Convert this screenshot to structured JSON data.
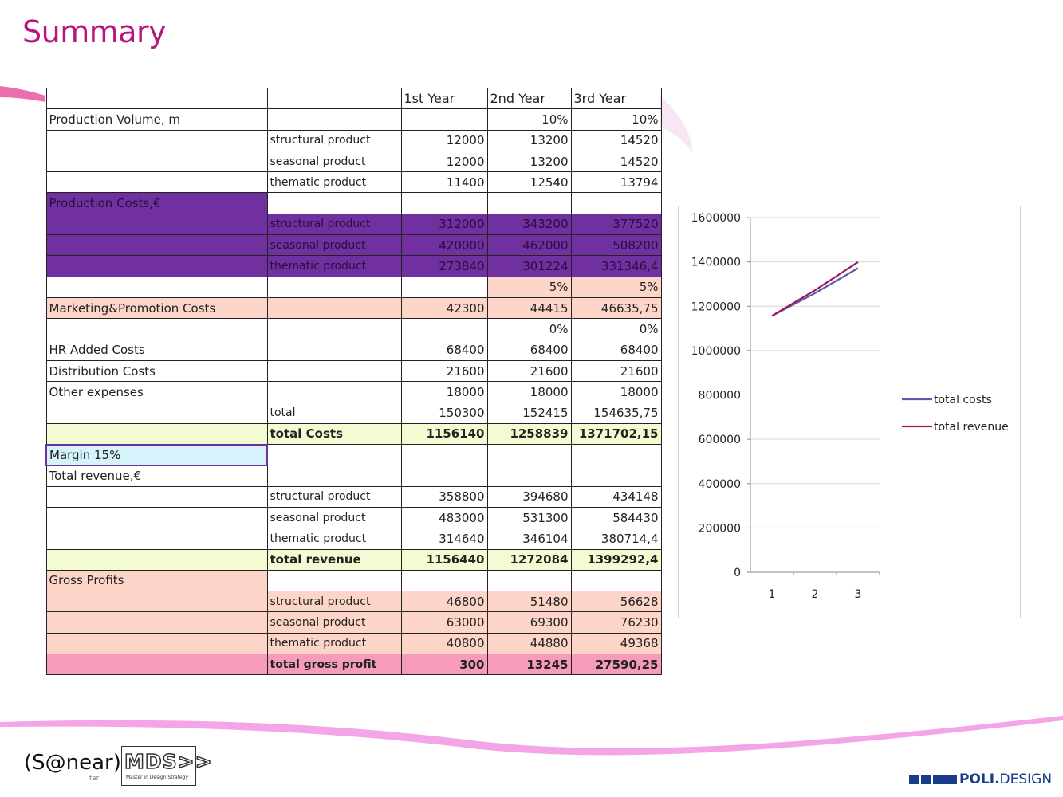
{
  "page": {
    "title": "Summary"
  },
  "table": {
    "headers": [
      "",
      "",
      "1st Year",
      "2nd Year",
      "3rd Year"
    ],
    "rows": [
      {
        "style": "",
        "cells": [
          "Production Volume, m",
          "",
          "",
          "10%",
          "10%"
        ]
      },
      {
        "style": "",
        "cells": [
          "",
          "structural product",
          "12000",
          "13200",
          "14520"
        ]
      },
      {
        "style": "",
        "cells": [
          "",
          "seasonal product",
          "12000",
          "13200",
          "14520"
        ]
      },
      {
        "style": "",
        "cells": [
          "",
          "thematic product",
          "11400",
          "12540",
          "13794"
        ]
      },
      {
        "style": "purplehead",
        "cells": [
          "Production Costs,€",
          "",
          "",
          "",
          ""
        ]
      },
      {
        "style": "purple",
        "cells": [
          "",
          "structural product",
          "312000",
          "343200",
          "377520"
        ]
      },
      {
        "style": "purple",
        "cells": [
          "",
          "seasonal product",
          "420000",
          "462000",
          "508200"
        ]
      },
      {
        "style": "purple",
        "cells": [
          "",
          "thematic product",
          "273840",
          "301224",
          "331346,4"
        ]
      },
      {
        "style": "peachpct",
        "cells": [
          "",
          "",
          "",
          "5%",
          "5%"
        ]
      },
      {
        "style": "pink",
        "cells": [
          "Marketing&Promotion Costs",
          "",
          "42300",
          "44415",
          "46635,75"
        ]
      },
      {
        "style": "",
        "cells": [
          "",
          "",
          "",
          "0%",
          "0%"
        ]
      },
      {
        "style": "",
        "cells": [
          "HR Added Costs",
          "",
          "68400",
          "68400",
          "68400"
        ]
      },
      {
        "style": "",
        "cells": [
          "Distribution Costs",
          "",
          "21600",
          "21600",
          "21600"
        ]
      },
      {
        "style": "",
        "cells": [
          "Other expenses",
          "",
          "18000",
          "18000",
          "18000"
        ]
      },
      {
        "style": "",
        "cells": [
          "",
          "total",
          "150300",
          "152415",
          "154635,75"
        ]
      },
      {
        "style": "limebold",
        "cells": [
          "",
          "total Costs",
          "1156140",
          "1258839",
          "1371702,15"
        ]
      },
      {
        "style": "cyan",
        "cells": [
          "Margin 15%",
          "",
          "",
          "",
          ""
        ]
      },
      {
        "style": "",
        "cells": [
          "Total revenue,€",
          "",
          "",
          "",
          ""
        ]
      },
      {
        "style": "",
        "cells": [
          "",
          "structural product",
          "358800",
          "394680",
          "434148"
        ]
      },
      {
        "style": "",
        "cells": [
          "",
          "seasonal product",
          "483000",
          "531300",
          "584430"
        ]
      },
      {
        "style": "",
        "cells": [
          "",
          "thematic product",
          "314640",
          "346104",
          "380714,4"
        ]
      },
      {
        "style": "limebold",
        "cells": [
          "",
          "total revenue",
          "1156440",
          "1272084",
          "1399292,4"
        ]
      },
      {
        "style": "pinkhead",
        "cells": [
          "Gross Profits",
          "",
          "",
          "",
          ""
        ]
      },
      {
        "style": "pink",
        "cells": [
          "",
          "structural product",
          "46800",
          "51480",
          "56628"
        ]
      },
      {
        "style": "pink",
        "cells": [
          "",
          "seasonal product",
          "63000",
          "69300",
          "76230"
        ]
      },
      {
        "style": "pink",
        "cells": [
          "",
          "thematic product",
          "40800",
          "44880",
          "49368"
        ]
      },
      {
        "style": "pinkstrongbold",
        "cells": [
          "",
          "total gross profit",
          "300",
          "13245",
          "27590,25"
        ]
      }
    ]
  },
  "chart_data": {
    "type": "line",
    "x": [
      1,
      2,
      3
    ],
    "categories": [
      "1",
      "2",
      "3"
    ],
    "series": [
      {
        "name": "total costs",
        "values": [
          1156140,
          1258839,
          1371702.15
        ],
        "color": "#5b5ea6"
      },
      {
        "name": "total revenue",
        "values": [
          1156440,
          1272084,
          1399292.4
        ],
        "color": "#a3175f"
      }
    ],
    "ylim": [
      0,
      1600000
    ],
    "yticks": [
      "0",
      "200000",
      "400000",
      "600000",
      "800000",
      "1000000",
      "1200000",
      "1400000",
      "1600000"
    ],
    "grid": true,
    "legend": "right"
  },
  "footer": {
    "logo1": "(S@near)",
    "logo1_sub": "far",
    "logo2": "MDS>>",
    "logo2_sub": "Master in Design Strategy",
    "logo3_bold": "POLI.",
    "logo3_rest": "DESIGN"
  },
  "colors": {
    "title": "#b5177d",
    "purple": "#7030a0",
    "peach": "#fcd5c8",
    "lime": "#f3fbd2",
    "pink_total": "#f79bbb",
    "cyan": "#d6f3fb"
  }
}
